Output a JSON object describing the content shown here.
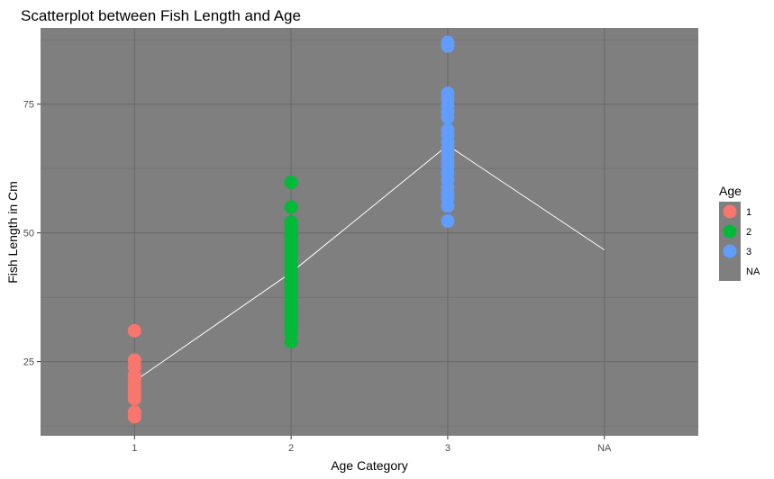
{
  "chart_data": {
    "type": "scatter",
    "title": "Scatterplot between Fish Length and Age",
    "xlabel": "Age Category",
    "ylabel": "Fish Length in Cm",
    "categories": [
      "1",
      "2",
      "3",
      "NA"
    ],
    "ylim": [
      10.6,
      89.8
    ],
    "y_ticks": [
      25,
      50,
      75
    ],
    "y_tick_labels": [
      "25",
      "50",
      "75"
    ],
    "grid": true,
    "legend_position": "right",
    "legend": {
      "title": "Age",
      "entries": [
        {
          "label": "1",
          "color": "#F8766D"
        },
        {
          "label": "2",
          "color": "#00BA38"
        },
        {
          "label": "3",
          "color": "#619CFF"
        },
        {
          "label": "NA",
          "color": null
        }
      ]
    },
    "series": [
      {
        "name": "1",
        "category": "1",
        "color": "#F8766D",
        "values": [
          31,
          25.3,
          24,
          22.4,
          21.5,
          20.5,
          19.5,
          18.5,
          17.8,
          15.2,
          14.3
        ]
      },
      {
        "name": "2",
        "category": "2",
        "color": "#00BA38",
        "values": [
          59.8,
          55,
          52.1,
          51.5,
          50.8,
          50,
          49.3,
          48.5,
          47.8,
          47,
          46.3,
          45.5,
          44.8,
          44,
          43.3,
          42.5,
          41.8,
          41,
          40.3,
          39.5,
          38.8,
          38,
          37.3,
          36.5,
          35.8,
          35,
          34.3,
          33.5,
          32.8,
          32,
          31.3,
          30.5,
          28.9
        ]
      },
      {
        "name": "3",
        "category": "3",
        "color": "#619CFF",
        "values": [
          87,
          86.3,
          77.1,
          76,
          74.8,
          73.5,
          72.4,
          70,
          68.9,
          67.6,
          66.4,
          65.2,
          64,
          62.9,
          61.6,
          60.3,
          58.8,
          57.8,
          56.7,
          55.2,
          52.3
        ]
      }
    ],
    "mean_line": {
      "color": "#ffffff",
      "points": [
        {
          "category": "1",
          "y": 21.2
        },
        {
          "category": "2",
          "y": 42.3
        },
        {
          "category": "3",
          "y": 67
        },
        {
          "category": "NA",
          "y": 46.7
        }
      ]
    }
  }
}
